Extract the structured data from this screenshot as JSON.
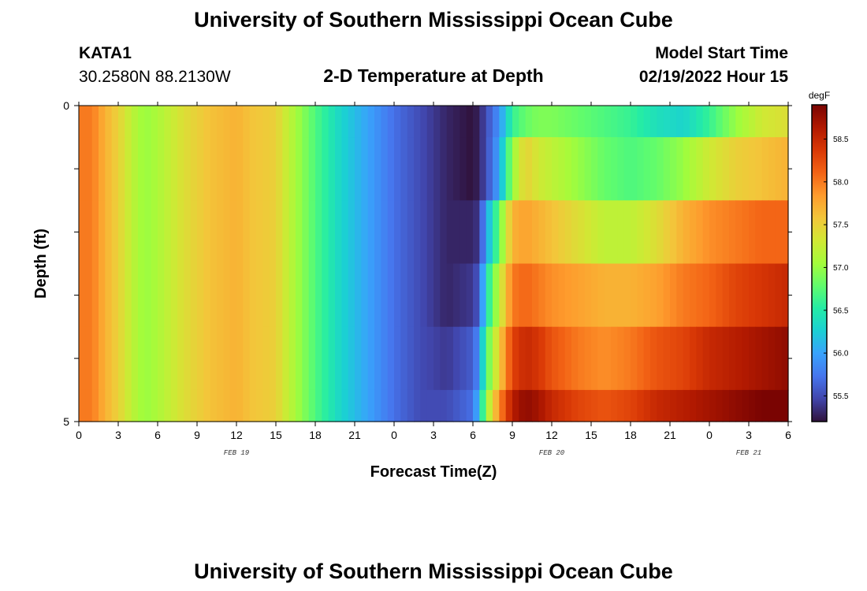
{
  "header": {
    "title": "University of Southern Mississippi Ocean Cube",
    "station_name": "KATA1",
    "station_coords": "30.2580N  88.2130W",
    "chart_title": "2-D Temperature at Depth",
    "start_time_label": "Model Start Time",
    "start_time_value": "02/19/2022 Hour 15"
  },
  "footer": {
    "title": "University of Southern Mississippi Ocean Cube"
  },
  "chart_data": {
    "type": "heatmap",
    "title": "2-D Temperature at Depth",
    "xlabel": "Forecast Time(Z)",
    "ylabel": "Depth (ft)",
    "x_tick_labels": [
      "0",
      "3",
      "6",
      "9",
      "12",
      "15",
      "18",
      "21",
      "0",
      "3",
      "6",
      "9",
      "12",
      "15",
      "18",
      "21",
      "0",
      "3",
      "6"
    ],
    "x_range_hours": [
      0,
      54
    ],
    "date_labels": [
      {
        "text": "FEB 19",
        "hour": 12
      },
      {
        "text": "FEB 20",
        "hour": 36
      },
      {
        "text": "FEB 21",
        "hour": 51
      }
    ],
    "y_tick_labels": [
      "0",
      "5"
    ],
    "y_range": [
      0,
      5
    ],
    "depth_rows": [
      0,
      1,
      2,
      3,
      4,
      5
    ],
    "colorbar": {
      "unit": "degF",
      "range": [
        55.2,
        58.9
      ],
      "tick_labels": [
        "55.5",
        "56.0",
        "56.5",
        "57.0",
        "57.5",
        "58.0",
        "58.5"
      ],
      "colors": [
        "#30123b",
        "#4145ab",
        "#4675ed",
        "#39a2fc",
        "#1bcfd4",
        "#24eca6",
        "#61fc6c",
        "#a4fc3b",
        "#d1e834",
        "#f3c63a",
        "#fe9b2d",
        "#f36315",
        "#d93806",
        "#b11901",
        "#7a0402"
      ]
    },
    "time_nodes_hours": [
      0,
      1,
      2,
      3,
      4,
      5,
      6,
      8,
      10,
      12,
      13,
      15,
      16,
      18,
      20,
      22,
      24,
      26,
      28,
      30,
      30.5,
      31,
      32,
      33,
      34,
      35,
      36,
      38,
      40,
      42,
      44,
      46,
      48,
      50,
      52,
      54
    ],
    "temperature_by_depth": [
      [
        58.0,
        58.0,
        57.7,
        57.5,
        57.2,
        57.0,
        57.1,
        57.4,
        57.6,
        57.7,
        57.6,
        57.5,
        57.2,
        56.7,
        56.3,
        56.0,
        55.7,
        55.5,
        55.3,
        55.2,
        55.3,
        55.5,
        55.9,
        56.6,
        56.8,
        56.9,
        56.9,
        56.8,
        56.7,
        56.6,
        56.4,
        56.3,
        56.6,
        57.0,
        57.3,
        57.4
      ],
      [
        58.0,
        58.0,
        57.7,
        57.5,
        57.2,
        57.0,
        57.1,
        57.4,
        57.6,
        57.7,
        57.6,
        57.5,
        57.2,
        56.7,
        56.3,
        56.0,
        55.7,
        55.5,
        55.3,
        55.2,
        55.3,
        55.5,
        56.0,
        57.0,
        57.5,
        57.3,
        57.2,
        57.0,
        56.8,
        56.7,
        56.8,
        57.0,
        57.3,
        57.5,
        57.6,
        57.7
      ],
      [
        58.0,
        58.0,
        57.7,
        57.5,
        57.2,
        57.0,
        57.1,
        57.4,
        57.6,
        57.7,
        57.6,
        57.5,
        57.2,
        56.7,
        56.3,
        56.0,
        55.7,
        55.5,
        55.3,
        55.3,
        55.4,
        56.0,
        56.8,
        57.7,
        57.8,
        57.7,
        57.6,
        57.4,
        57.2,
        57.2,
        57.4,
        57.7,
        57.9,
        58.0,
        58.1,
        58.1
      ],
      [
        58.0,
        58.0,
        57.7,
        57.5,
        57.2,
        57.0,
        57.1,
        57.4,
        57.6,
        57.7,
        57.6,
        57.5,
        57.2,
        56.7,
        56.3,
        56.0,
        55.7,
        55.5,
        55.3,
        55.4,
        55.6,
        56.4,
        57.2,
        58.0,
        58.1,
        58.0,
        57.9,
        57.8,
        57.7,
        57.7,
        57.8,
        58.0,
        58.1,
        58.3,
        58.4,
        58.5
      ],
      [
        58.0,
        58.0,
        57.7,
        57.5,
        57.2,
        57.0,
        57.1,
        57.4,
        57.6,
        57.7,
        57.6,
        57.5,
        57.2,
        56.7,
        56.3,
        56.0,
        55.7,
        55.5,
        55.4,
        55.6,
        55.9,
        56.7,
        57.5,
        58.3,
        58.5,
        58.4,
        58.2,
        58.0,
        57.9,
        58.0,
        58.2,
        58.3,
        58.5,
        58.6,
        58.7,
        58.8
      ],
      [
        58.0,
        58.0,
        57.7,
        57.5,
        57.2,
        57.0,
        57.1,
        57.4,
        57.6,
        57.7,
        57.6,
        57.5,
        57.2,
        56.7,
        56.3,
        56.0,
        55.7,
        55.5,
        55.5,
        55.7,
        56.2,
        57.0,
        57.9,
        58.6,
        58.8,
        58.7,
        58.5,
        58.3,
        58.2,
        58.3,
        58.5,
        58.6,
        58.7,
        58.8,
        58.9,
        58.9
      ]
    ]
  }
}
